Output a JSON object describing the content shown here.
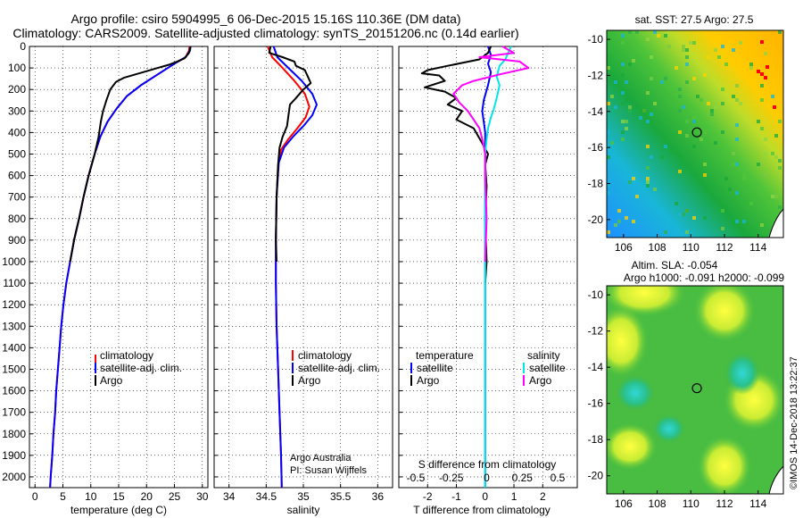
{
  "title_line1": "Argo profile: csiro 5904995_6 06-Dec-2015 15.16S 110.36E (DM data)",
  "title_line2": "Climatology: CARS2009. Satellite-adjusted climatology: synTS_20151206.nc (0.14d earlier)",
  "watermark": "©IMOS 14-Dec-2018 13:22:37",
  "colors": {
    "climatology": "#ff0000",
    "satellite": "#0000ff",
    "argo": "#000000",
    "sal_satellite": "#00e5e5",
    "sal_argo": "#ff00ff"
  },
  "depth_ticks": [
    "0",
    "100",
    "200",
    "300",
    "400",
    "500",
    "600",
    "700",
    "800",
    "900",
    "1000",
    "1100",
    "1200",
    "1300",
    "1400",
    "1500",
    "1600",
    "1700",
    "1800",
    "1900",
    "2000"
  ],
  "chart_data": [
    {
      "type": "line",
      "name": "temperature",
      "xlabel": "temperature (deg C)",
      "xticks": [
        "0",
        "5",
        "10",
        "15",
        "20",
        "25",
        "30"
      ],
      "xlim": [
        -1,
        31
      ],
      "ylim": [
        0,
        2050
      ],
      "legend": {
        "placement": "lower-center",
        "entries": [
          "climatology",
          "satellite-adj. clim.",
          "Argo"
        ]
      },
      "series": [
        {
          "name": "climatology",
          "color": "#ff0000",
          "points": [
            [
              27.7,
              0
            ],
            [
              27.6,
              20
            ],
            [
              27,
              50
            ],
            [
              25,
              80
            ],
            [
              22,
              130
            ],
            [
              19,
              180
            ],
            [
              16.5,
              230
            ],
            [
              14.6,
              290
            ],
            [
              13,
              350
            ],
            [
              11.7,
              420
            ],
            [
              10.7,
              500
            ],
            [
              9.6,
              600
            ],
            [
              8.7,
              700
            ],
            [
              7.9,
              800
            ],
            [
              7,
              900
            ],
            [
              6.3,
              1000
            ],
            [
              5.6,
              1100
            ],
            [
              5.1,
              1200
            ],
            [
              4.7,
              1300
            ],
            [
              4.4,
              1400
            ],
            [
              4.1,
              1500
            ],
            [
              3.8,
              1600
            ],
            [
              3.6,
              1700
            ],
            [
              3.3,
              1800
            ],
            [
              3.1,
              1900
            ],
            [
              2.8,
              2000
            ],
            [
              2.7,
              2050
            ]
          ]
        },
        {
          "name": "satellite-adj. clim.",
          "color": "#0000ff",
          "points": [
            [
              27.9,
              0
            ],
            [
              27.8,
              20
            ],
            [
              27,
              50
            ],
            [
              25,
              80
            ],
            [
              22,
              130
            ],
            [
              19,
              180
            ],
            [
              16.5,
              230
            ],
            [
              14.6,
              290
            ],
            [
              13,
              350
            ],
            [
              11.7,
              420
            ],
            [
              10.7,
              500
            ],
            [
              9.6,
              600
            ],
            [
              8.7,
              700
            ],
            [
              7.9,
              800
            ],
            [
              7,
              900
            ],
            [
              6.3,
              1000
            ],
            [
              5.6,
              1100
            ],
            [
              5.1,
              1200
            ],
            [
              4.7,
              1300
            ],
            [
              4.4,
              1400
            ],
            [
              4.1,
              1500
            ],
            [
              3.8,
              1600
            ],
            [
              3.6,
              1700
            ],
            [
              3.3,
              1800
            ],
            [
              3.1,
              1900
            ],
            [
              2.8,
              2000
            ],
            [
              2.7,
              2050
            ]
          ]
        },
        {
          "name": "Argo",
          "color": "#000000",
          "points": [
            [
              27.9,
              0
            ],
            [
              27.8,
              10
            ],
            [
              27.6,
              30
            ],
            [
              26.8,
              55
            ],
            [
              25.5,
              70
            ],
            [
              24,
              85
            ],
            [
              22,
              100
            ],
            [
              20,
              115
            ],
            [
              18,
              130
            ],
            [
              16,
              145
            ],
            [
              14.5,
              165
            ],
            [
              13.5,
              200
            ],
            [
              12.8,
              250
            ],
            [
              12.2,
              300
            ],
            [
              11.8,
              350
            ],
            [
              11.4,
              420
            ],
            [
              10.7,
              500
            ],
            [
              9.6,
              600
            ],
            [
              8.7,
              700
            ],
            [
              7.9,
              800
            ],
            [
              7,
              900
            ],
            [
              6.3,
              1000
            ]
          ]
        }
      ]
    },
    {
      "type": "line",
      "name": "salinity",
      "xlabel": "salinity",
      "xticks": [
        "34",
        "34.5",
        "35",
        "35.5",
        "36"
      ],
      "xlim": [
        33.8,
        36.2
      ],
      "ylim": [
        0,
        2050
      ],
      "legend": {
        "placement": "lower-center",
        "entries": [
          "climatology",
          "satellite-adj. clim.",
          "Argo"
        ]
      },
      "annotation": [
        "Argo Australia",
        "PI: Susan Wijffels"
      ],
      "series": [
        {
          "name": "climatology",
          "color": "#ff0000",
          "points": [
            [
              34.52,
              0
            ],
            [
              34.58,
              50
            ],
            [
              34.72,
              100
            ],
            [
              34.88,
              160
            ],
            [
              35.02,
              220
            ],
            [
              35.08,
              280
            ],
            [
              35.03,
              330
            ],
            [
              34.92,
              380
            ],
            [
              34.8,
              430
            ],
            [
              34.7,
              480
            ],
            [
              34.66,
              550
            ],
            [
              34.64,
              700
            ],
            [
              34.63,
              900
            ],
            [
              34.63,
              1100
            ],
            [
              34.64,
              1300
            ],
            [
              34.66,
              1500
            ],
            [
              34.68,
              1700
            ],
            [
              34.7,
              1900
            ],
            [
              34.71,
              2050
            ]
          ]
        },
        {
          "name": "satellite-adj. clim.",
          "color": "#0000ff",
          "points": [
            [
              34.6,
              0
            ],
            [
              34.65,
              50
            ],
            [
              34.8,
              100
            ],
            [
              34.98,
              160
            ],
            [
              35.12,
              220
            ],
            [
              35.18,
              270
            ],
            [
              35.12,
              320
            ],
            [
              35.0,
              370
            ],
            [
              34.86,
              420
            ],
            [
              34.74,
              470
            ],
            [
              34.67,
              540
            ],
            [
              34.64,
              700
            ],
            [
              34.63,
              900
            ],
            [
              34.63,
              1100
            ],
            [
              34.64,
              1300
            ],
            [
              34.66,
              1500
            ],
            [
              34.68,
              1700
            ],
            [
              34.7,
              1900
            ],
            [
              34.71,
              2050
            ]
          ]
        },
        {
          "name": "Argo",
          "color": "#000000",
          "points": [
            [
              34.56,
              0
            ],
            [
              34.54,
              30
            ],
            [
              34.72,
              50
            ],
            [
              34.88,
              70
            ],
            [
              34.9,
              90
            ],
            [
              35.02,
              110
            ],
            [
              35.06,
              140
            ],
            [
              35.1,
              170
            ],
            [
              35.0,
              200
            ],
            [
              34.9,
              240
            ],
            [
              34.82,
              270
            ],
            [
              34.8,
              320
            ],
            [
              34.78,
              370
            ],
            [
              34.72,
              420
            ],
            [
              34.68,
              470
            ],
            [
              34.66,
              550
            ],
            [
              34.64,
              700
            ],
            [
              34.63,
              900
            ],
            [
              34.64,
              1000
            ]
          ]
        }
      ]
    },
    {
      "type": "line",
      "name": "difference",
      "xlabel": "T difference from climatology",
      "xticks": [
        "-2",
        "-1",
        "0",
        "1",
        "2"
      ],
      "xlim": [
        -3,
        3.2
      ],
      "secondary_xlabel": "S difference from climatology",
      "secondary_xticks": [
        "-0.5",
        "-0.25",
        "0",
        "0.25",
        "0.5"
      ],
      "ylim": [
        0,
        2050
      ],
      "legend": {
        "placement": "lower-center",
        "temperature_title": "temperature",
        "salinity_title": "salinity",
        "entries": [
          "satellite",
          "Argo",
          "satellite",
          "Argo"
        ]
      },
      "series": [
        {
          "name": "satellite",
          "quantity": "temperature",
          "color": "#0000ff",
          "points": [
            [
              0.1,
              0
            ],
            [
              0.2,
              40
            ],
            [
              0.1,
              80
            ],
            [
              0.2,
              120
            ],
            [
              0.1,
              180
            ],
            [
              -0.05,
              250
            ],
            [
              -0.1,
              300
            ],
            [
              -0.05,
              350
            ],
            [
              0,
              400
            ],
            [
              0,
              600
            ],
            [
              0,
              1000
            ],
            [
              0,
              1500
            ],
            [
              0,
              2050
            ]
          ]
        },
        {
          "name": "Argo",
          "quantity": "temperature",
          "color": "#000000",
          "points": [
            [
              0.2,
              0
            ],
            [
              0.1,
              30
            ],
            [
              -0.2,
              60
            ],
            [
              -1.3,
              90
            ],
            [
              -2.0,
              110
            ],
            [
              -2.2,
              125
            ],
            [
              -1.6,
              135
            ],
            [
              -1.4,
              160
            ],
            [
              -2.1,
              190
            ],
            [
              -1.4,
              210
            ],
            [
              -1.0,
              240
            ],
            [
              -1.3,
              270
            ],
            [
              -0.8,
              300
            ],
            [
              -1.0,
              340
            ],
            [
              -0.4,
              380
            ],
            [
              -0.1,
              450
            ],
            [
              0.1,
              500
            ],
            [
              0,
              550
            ],
            [
              0.05,
              650
            ],
            [
              0,
              800
            ],
            [
              0.05,
              1000
            ],
            [
              0,
              1100
            ]
          ]
        },
        {
          "name": "satellite",
          "quantity": "salinity",
          "color": "#00e5e5",
          "points": [
            [
              0.9,
              0
            ],
            [
              0.8,
              30
            ],
            [
              0.7,
              60
            ],
            [
              0.5,
              90
            ],
            [
              0.4,
              140
            ],
            [
              0.5,
              180
            ],
            [
              0.4,
              240
            ],
            [
              0.3,
              290
            ],
            [
              0.2,
              330
            ],
            [
              0.1,
              380
            ],
            [
              0.05,
              430
            ],
            [
              0,
              500
            ],
            [
              0,
              700
            ],
            [
              0,
              1000
            ],
            [
              0,
              1500
            ],
            [
              0,
              2050
            ]
          ]
        },
        {
          "name": "Argo",
          "quantity": "salinity",
          "color": "#ff00ff",
          "points": [
            [
              0.6,
              0
            ],
            [
              1.0,
              30
            ],
            [
              -0.2,
              50
            ],
            [
              1.2,
              70
            ],
            [
              1.5,
              100
            ],
            [
              0.5,
              130
            ],
            [
              -0.4,
              160
            ],
            [
              -0.8,
              180
            ],
            [
              -1.1,
              220
            ],
            [
              -0.9,
              260
            ],
            [
              -0.6,
              300
            ],
            [
              -0.4,
              340
            ],
            [
              -0.2,
              380
            ],
            [
              -0.1,
              430
            ],
            [
              0,
              500
            ],
            [
              0,
              600
            ],
            [
              0.05,
              800
            ],
            [
              0,
              1000
            ]
          ]
        }
      ]
    },
    {
      "type": "heatmap",
      "name": "sst_map",
      "title": "sat. SST: 27.5 Argo: 27.5",
      "xticks": [
        "106",
        "108",
        "110",
        "112",
        "114"
      ],
      "yticks": [
        "-10",
        "-12",
        "-14",
        "-16",
        "-18",
        "-20"
      ],
      "xlim": [
        105,
        115.5
      ],
      "ylim": [
        -21,
        -9.5
      ],
      "marker": {
        "lon": 110.36,
        "lat": -15.16
      }
    },
    {
      "type": "heatmap",
      "name": "sla_map",
      "title": "Altim. SLA: -0.054",
      "subtitle": "Argo h1000: -0.091 h2000: -0.099",
      "xticks": [
        "106",
        "108",
        "110",
        "112",
        "114"
      ],
      "yticks": [
        "-10",
        "-12",
        "-14",
        "-16",
        "-18",
        "-20"
      ],
      "xlim": [
        105,
        115.5
      ],
      "ylim": [
        -21,
        -9.5
      ],
      "marker": {
        "lon": 110.36,
        "lat": -15.16
      }
    }
  ]
}
